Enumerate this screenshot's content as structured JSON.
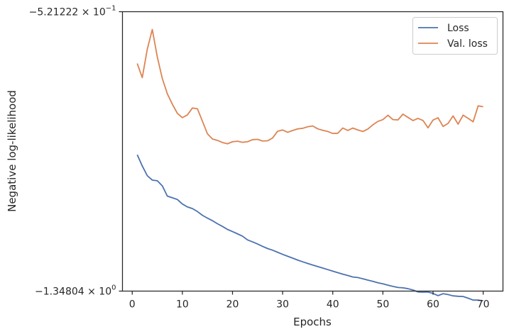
{
  "chart_data": {
    "type": "line",
    "xlabel": "Epochs",
    "ylabel": "Negative log-likelihood",
    "xlim": [
      -1.95,
      73.95
    ],
    "x_ticks": [
      0,
      10,
      20,
      30,
      40,
      50,
      60,
      70
    ],
    "y_log": true,
    "ylim": [
      -0.521222,
      -1.34804
    ],
    "y_tick_labels": [
      {
        "mantissa": "−5.21222",
        "exponent": "−1"
      },
      {
        "mantissa": "−1.34804",
        "exponent": "0"
      }
    ],
    "grid": false,
    "legend_position": "upper right",
    "x": [
      1,
      2,
      3,
      4,
      5,
      6,
      7,
      8,
      9,
      10,
      11,
      12,
      13,
      14,
      15,
      16,
      17,
      18,
      19,
      20,
      21,
      22,
      23,
      24,
      25,
      26,
      27,
      28,
      29,
      30,
      31,
      32,
      33,
      34,
      35,
      36,
      37,
      38,
      39,
      40,
      41,
      42,
      43,
      44,
      45,
      46,
      47,
      48,
      49,
      50,
      51,
      52,
      53,
      54,
      55,
      56,
      57,
      58,
      59,
      60,
      61,
      62,
      63,
      64,
      65,
      66,
      67,
      68,
      69,
      70
    ],
    "series": [
      {
        "name": "Loss",
        "color": "#4c72b0",
        "values": [
          -0.8478,
          -0.8806,
          -0.9104,
          -0.9242,
          -0.9262,
          -0.9424,
          -0.9757,
          -0.9814,
          -0.9872,
          -1.0025,
          -1.0123,
          -1.0182,
          -1.0284,
          -1.0418,
          -1.0518,
          -1.061,
          -1.072,
          -1.0819,
          -1.0929,
          -1.101,
          -1.1095,
          -1.1184,
          -1.1327,
          -1.1401,
          -1.1486,
          -1.1577,
          -1.1664,
          -1.173,
          -1.1813,
          -1.1896,
          -1.1974,
          -1.205,
          -1.213,
          -1.2202,
          -1.227,
          -1.2338,
          -1.2401,
          -1.2463,
          -1.253,
          -1.2596,
          -1.2661,
          -1.2726,
          -1.2783,
          -1.2849,
          -1.2873,
          -1.2928,
          -1.2987,
          -1.3041,
          -1.3105,
          -1.315,
          -1.321,
          -1.3267,
          -1.3314,
          -1.333,
          -1.3369,
          -1.343,
          -1.352,
          -1.353,
          -1.352,
          -1.359,
          -1.369,
          -1.36,
          -1.364,
          -1.37,
          -1.372,
          -1.373,
          -1.381,
          -1.39,
          -1.39,
          -1.393
        ]
      },
      {
        "name": "Val. loss",
        "color": "#dd8452",
        "values": [
          -0.6216,
          -0.6523,
          -0.5922,
          -0.5537,
          -0.6078,
          -0.6543,
          -0.689,
          -0.7139,
          -0.7364,
          -0.7473,
          -0.7404,
          -0.7232,
          -0.725,
          -0.7564,
          -0.7895,
          -0.8036,
          -0.8074,
          -0.8133,
          -0.8168,
          -0.8111,
          -0.8096,
          -0.8127,
          -0.8111,
          -0.8054,
          -0.8045,
          -0.8092,
          -0.8085,
          -0.8008,
          -0.7827,
          -0.7793,
          -0.7855,
          -0.7807,
          -0.7765,
          -0.7749,
          -0.7709,
          -0.7688,
          -0.7763,
          -0.7802,
          -0.7833,
          -0.7886,
          -0.7881,
          -0.7741,
          -0.7805,
          -0.7743,
          -0.7793,
          -0.7833,
          -0.7767,
          -0.7658,
          -0.7569,
          -0.7524,
          -0.7412,
          -0.7523,
          -0.7532,
          -0.7385,
          -0.7467,
          -0.7548,
          -0.7491,
          -0.7546,
          -0.7736,
          -0.7534,
          -0.7476,
          -0.77,
          -0.762,
          -0.743,
          -0.764,
          -0.741,
          -0.749,
          -0.758,
          -0.718,
          -0.72
        ]
      }
    ]
  }
}
